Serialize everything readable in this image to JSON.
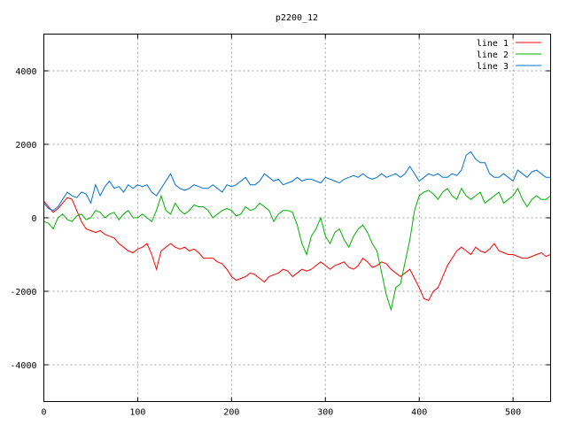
{
  "chart_data": {
    "type": "line",
    "title": "p2200_12",
    "xlabel": "",
    "ylabel": "",
    "xlim": [
      0,
      540
    ],
    "ylim": [
      -5000,
      5000
    ],
    "x_ticks": [
      0,
      100,
      200,
      300,
      400,
      500
    ],
    "y_ticks": [
      -4000,
      -2000,
      0,
      2000,
      4000
    ],
    "grid": true,
    "legend_position": "top-right",
    "series": [
      {
        "name": "line 1",
        "color": "#ff0000",
        "x": [
          0,
          5,
          10,
          15,
          20,
          25,
          30,
          35,
          40,
          45,
          50,
          55,
          60,
          65,
          70,
          75,
          80,
          85,
          90,
          95,
          100,
          105,
          110,
          115,
          120,
          125,
          130,
          135,
          140,
          145,
          150,
          155,
          160,
          165,
          170,
          175,
          180,
          185,
          190,
          195,
          200,
          205,
          210,
          215,
          220,
          225,
          230,
          235,
          240,
          245,
          250,
          255,
          260,
          265,
          270,
          275,
          280,
          285,
          290,
          295,
          300,
          305,
          310,
          315,
          320,
          325,
          330,
          335,
          340,
          345,
          350,
          355,
          360,
          365,
          370,
          375,
          380,
          385,
          390,
          395,
          400,
          405,
          410,
          415,
          420,
          425,
          430,
          435,
          440,
          445,
          450,
          455,
          460,
          465,
          470,
          475,
          480,
          485,
          490,
          495,
          500,
          505,
          510,
          515,
          520,
          525,
          530,
          535,
          540
        ],
        "values": [
          450,
          300,
          150,
          250,
          400,
          550,
          500,
          200,
          -100,
          -300,
          -350,
          -400,
          -350,
          -450,
          -500,
          -550,
          -700,
          -800,
          -900,
          -950,
          -850,
          -800,
          -700,
          -1000,
          -1400,
          -900,
          -800,
          -700,
          -800,
          -850,
          -800,
          -900,
          -850,
          -950,
          -1100,
          -1100,
          -1100,
          -1200,
          -1250,
          -1400,
          -1600,
          -1700,
          -1650,
          -1600,
          -1500,
          -1550,
          -1650,
          -1750,
          -1600,
          -1550,
          -1500,
          -1400,
          -1450,
          -1600,
          -1500,
          -1400,
          -1450,
          -1400,
          -1300,
          -1200,
          -1300,
          -1400,
          -1300,
          -1250,
          -1200,
          -1350,
          -1400,
          -1300,
          -1100,
          -1200,
          -1350,
          -1300,
          -1200,
          -1250,
          -1400,
          -1500,
          -1600,
          -1500,
          -1400,
          -1650,
          -1900,
          -2200,
          -2250,
          -2000,
          -1900,
          -1600,
          -1300,
          -1100,
          -900,
          -800,
          -900,
          -1000,
          -800,
          -900,
          -950,
          -850,
          -700,
          -900,
          -950,
          -1000,
          -1000,
          -1050,
          -1100,
          -1100,
          -1050,
          -1000,
          -950,
          -1050,
          -1000
        ]
      },
      {
        "name": "line 2",
        "color": "#00b000",
        "x": [
          0,
          5,
          10,
          15,
          20,
          25,
          30,
          35,
          40,
          45,
          50,
          55,
          60,
          65,
          70,
          75,
          80,
          85,
          90,
          95,
          100,
          105,
          110,
          115,
          120,
          125,
          130,
          135,
          140,
          145,
          150,
          155,
          160,
          165,
          170,
          175,
          180,
          185,
          190,
          195,
          200,
          205,
          210,
          215,
          220,
          225,
          230,
          235,
          240,
          245,
          250,
          255,
          260,
          265,
          270,
          275,
          280,
          285,
          290,
          295,
          300,
          305,
          310,
          315,
          320,
          325,
          330,
          335,
          340,
          345,
          350,
          355,
          360,
          365,
          370,
          375,
          380,
          385,
          390,
          395,
          400,
          405,
          410,
          415,
          420,
          425,
          430,
          435,
          440,
          445,
          450,
          455,
          460,
          465,
          470,
          475,
          480,
          485,
          490,
          495,
          500,
          505,
          510,
          515,
          520,
          525,
          530,
          535,
          540
        ],
        "values": [
          -100,
          -150,
          -300,
          0,
          100,
          -50,
          -100,
          50,
          100,
          -50,
          0,
          200,
          150,
          0,
          100,
          150,
          -50,
          100,
          200,
          0,
          0,
          100,
          0,
          -100,
          200,
          600,
          200,
          100,
          400,
          200,
          100,
          200,
          350,
          300,
          300,
          200,
          0,
          100,
          200,
          250,
          200,
          50,
          100,
          300,
          200,
          250,
          400,
          300,
          200,
          -100,
          100,
          200,
          200,
          150,
          -200,
          -700,
          -1000,
          -500,
          -300,
          0,
          -500,
          -700,
          -400,
          -300,
          -600,
          -800,
          -500,
          -300,
          -200,
          -400,
          -700,
          -900,
          -1500,
          -2100,
          -2500,
          -1900,
          -1800,
          -1200,
          -600,
          200,
          600,
          700,
          750,
          650,
          500,
          700,
          800,
          600,
          500,
          800,
          600,
          500,
          600,
          700,
          400,
          500,
          600,
          700,
          400,
          500,
          600,
          800,
          500,
          300,
          500,
          600,
          500,
          500,
          600
        ]
      },
      {
        "name": "line 3",
        "color": "#0070d0",
        "x": [
          0,
          5,
          10,
          15,
          20,
          25,
          30,
          35,
          40,
          45,
          50,
          55,
          60,
          65,
          70,
          75,
          80,
          85,
          90,
          95,
          100,
          105,
          110,
          115,
          120,
          125,
          130,
          135,
          140,
          145,
          150,
          155,
          160,
          165,
          170,
          175,
          180,
          185,
          190,
          195,
          200,
          205,
          210,
          215,
          220,
          225,
          230,
          235,
          240,
          245,
          250,
          255,
          260,
          265,
          270,
          275,
          280,
          285,
          290,
          295,
          300,
          305,
          310,
          315,
          320,
          325,
          330,
          335,
          340,
          345,
          350,
          355,
          360,
          365,
          370,
          375,
          380,
          385,
          390,
          395,
          400,
          405,
          410,
          415,
          420,
          425,
          430,
          435,
          440,
          445,
          450,
          455,
          460,
          465,
          470,
          475,
          480,
          485,
          490,
          495,
          500,
          505,
          510,
          515,
          520,
          525,
          530,
          535,
          540
        ],
        "values": [
          400,
          250,
          200,
          300,
          500,
          700,
          600,
          550,
          700,
          650,
          400,
          900,
          600,
          850,
          1000,
          800,
          850,
          700,
          900,
          800,
          900,
          850,
          900,
          700,
          600,
          800,
          1000,
          1200,
          900,
          800,
          750,
          800,
          900,
          850,
          800,
          800,
          900,
          800,
          700,
          900,
          850,
          900,
          1000,
          1100,
          900,
          900,
          1000,
          1200,
          1100,
          1000,
          1050,
          900,
          950,
          1000,
          1100,
          1000,
          1050,
          1050,
          1000,
          950,
          1100,
          1050,
          1000,
          950,
          1050,
          1100,
          1150,
          1100,
          1200,
          1100,
          1050,
          1100,
          1200,
          1100,
          1150,
          1200,
          1100,
          1200,
          1400,
          1200,
          1000,
          1100,
          1200,
          1150,
          1200,
          1100,
          1100,
          1200,
          1150,
          1300,
          1700,
          1800,
          1600,
          1500,
          1500,
          1200,
          1100,
          1100,
          1200,
          1100,
          1000,
          1300,
          1200,
          1100,
          1250,
          1300,
          1200,
          1100,
          1100
        ]
      }
    ]
  }
}
